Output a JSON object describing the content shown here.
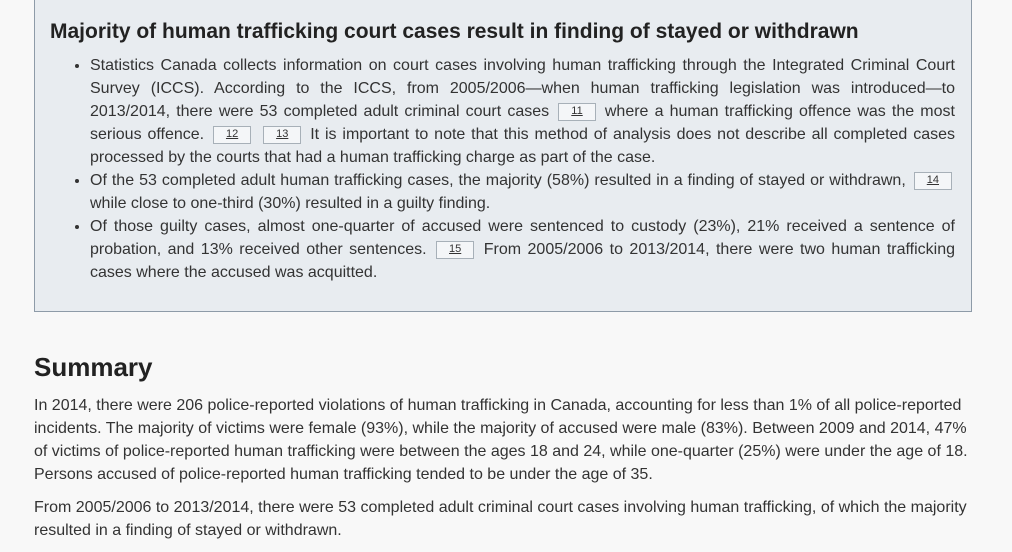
{
  "callout": {
    "title": "Majority of human trafficking court cases result in finding of stayed or withdrawn",
    "bullets": [
      {
        "p1": "Statistics Canada collects information on court cases involving human trafficking through the Integrated Criminal Court Survey (ICCS). According to the ICCS, from 2005/2006—when human trafficking legislation was introduced—to 2013/2014, there were 53 completed adult criminal court cases",
        "fn1": "11",
        "p2": "where a human trafficking offence was the most serious offence.",
        "fn2": "12",
        "fn3": "13",
        "p3": "It is important to note that this method of analysis does not describe all completed cases processed by the courts that had a human trafficking charge as part of the case."
      },
      {
        "p1": "Of the 53 completed adult human trafficking cases, the majority (58%) resulted in a finding of stayed or withdrawn,",
        "fn1": "14",
        "p2": "while close to one-third (30%) resulted in a guilty finding."
      },
      {
        "p1": "Of those guilty cases, almost one-quarter of accused were sentenced to custody (23%), 21% received a sentence of probation, and 13% received other sentences.",
        "fn1": "15",
        "p2": "From 2005/2006 to 2013/2014, there were two human trafficking cases where the accused was acquitted."
      }
    ]
  },
  "summary": {
    "heading": "Summary",
    "paragraphs": [
      "In 2014, there were 206 police-reported violations of human trafficking in Canada, accounting for less than 1% of all police-reported incidents. The majority of victims were female (93%), while the majority of accused were male (83%). Between 2009 and 2014, 47% of victims of police-reported human trafficking were between the ages 18 and 24, while one-quarter (25%) were under the age of 18. Persons accused of police-reported human trafficking tended to be under the age of 35.",
      "From 2005/2006 to 2013/2014, there were 53 completed adult criminal court cases involving human trafficking, of which the majority resulted in a finding of stayed or withdrawn."
    ]
  }
}
